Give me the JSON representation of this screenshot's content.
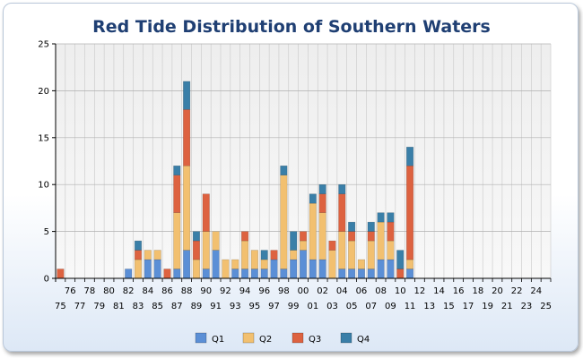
{
  "colors": {
    "q1": "#5b8fd6",
    "q2": "#f2c070",
    "q3": "#dd6240",
    "q4": "#3a7fa8"
  },
  "chart_data": {
    "type": "bar",
    "stacked": true,
    "title": "Red Tide Distribution of Southern Waters",
    "xlabel": "",
    "ylabel": "",
    "ylim": [
      0,
      25
    ],
    "yticks": [
      0,
      5,
      10,
      15,
      20,
      25
    ],
    "grid": true,
    "legend_position": "bottom",
    "categories": [
      "75",
      "76",
      "77",
      "78",
      "79",
      "80",
      "81",
      "82",
      "83",
      "84",
      "85",
      "86",
      "87",
      "88",
      "89",
      "90",
      "91",
      "92",
      "93",
      "94",
      "95",
      "96",
      "97",
      "98",
      "99",
      "00",
      "01",
      "02",
      "03",
      "04",
      "05",
      "06",
      "07",
      "08",
      "09",
      "10",
      "11",
      "12",
      "13",
      "14",
      "15",
      "16",
      "17",
      "18",
      "19",
      "20",
      "21",
      "22",
      "23",
      "24",
      "25"
    ],
    "series": [
      {
        "name": "Q1",
        "values": [
          0,
          0,
          0,
          0,
          0,
          0,
          0,
          1,
          0,
          2,
          2,
          0,
          1,
          3,
          0,
          1,
          3,
          0,
          1,
          1,
          1,
          1,
          2,
          1,
          2,
          3,
          2,
          2,
          0,
          1,
          1,
          1,
          1,
          2,
          2,
          0,
          1,
          0,
          0,
          0,
          0,
          0,
          0,
          0,
          0,
          0,
          0,
          0,
          0,
          0,
          0
        ]
      },
      {
        "name": "Q2",
        "values": [
          0,
          0,
          0,
          0,
          0,
          0,
          0,
          0,
          2,
          1,
          1,
          0,
          6,
          9,
          2,
          4,
          2,
          2,
          1,
          3,
          2,
          1,
          0,
          10,
          1,
          1,
          6,
          5,
          3,
          4,
          3,
          1,
          3,
          4,
          2,
          0,
          1,
          0,
          0,
          0,
          0,
          0,
          0,
          0,
          0,
          0,
          0,
          0,
          0,
          0,
          0
        ]
      },
      {
        "name": "Q3",
        "values": [
          1,
          0,
          0,
          0,
          0,
          0,
          0,
          0,
          1,
          0,
          0,
          1,
          4,
          6,
          2,
          4,
          0,
          0,
          0,
          1,
          0,
          0,
          1,
          0,
          0,
          1,
          0,
          2,
          1,
          4,
          1,
          0,
          1,
          0,
          2,
          1,
          10,
          0,
          0,
          0,
          0,
          0,
          0,
          0,
          0,
          0,
          0,
          0,
          0,
          0,
          0
        ]
      },
      {
        "name": "Q4",
        "values": [
          0,
          0,
          0,
          0,
          0,
          0,
          0,
          0,
          1,
          0,
          0,
          0,
          1,
          3,
          1,
          0,
          0,
          0,
          0,
          0,
          0,
          1,
          0,
          1,
          2,
          0,
          1,
          1,
          0,
          1,
          1,
          0,
          1,
          1,
          1,
          2,
          2,
          0,
          0,
          0,
          0,
          0,
          0,
          0,
          0,
          0,
          0,
          0,
          0,
          0,
          0
        ]
      }
    ]
  }
}
